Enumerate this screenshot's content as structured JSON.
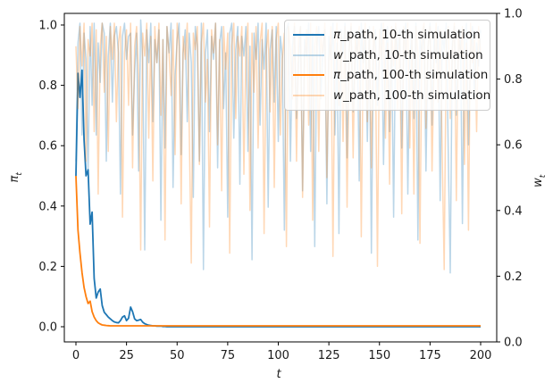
{
  "figure": {
    "background": "#ffffff",
    "xlabel": {
      "symbol": "t",
      "sub": ""
    },
    "ylabel_left": {
      "symbol": "π",
      "sub": "t"
    },
    "ylabel_right": {
      "symbol": "w",
      "sub": "t"
    },
    "x_tick_labels": [
      "0",
      "25",
      "50",
      "75",
      "100",
      "125",
      "150",
      "175",
      "200"
    ],
    "y_tick_labels_left": [
      "0.0",
      "0.2",
      "0.4",
      "0.6",
      "0.8",
      "1.0"
    ],
    "y_tick_labels_right": [
      "0.0",
      "0.2",
      "0.4",
      "0.6",
      "0.8",
      "1.0"
    ],
    "spine_color": "#000000",
    "grid": false
  },
  "legend": {
    "position": "upper right",
    "border_color": "#cccccc",
    "entries": [
      {
        "symbol": "π",
        "text": "_path, 10-th simulation",
        "color": "#1f77b4",
        "alpha": 1
      },
      {
        "symbol": "w",
        "text": "_path, 10-th simulation",
        "color": "#1f77b4",
        "alpha": 0.3
      },
      {
        "symbol": "π",
        "text": "_path, 100-th simulation",
        "color": "#ff7f0e",
        "alpha": 1
      },
      {
        "symbol": "w",
        "text": "_path, 100-th simulation",
        "color": "#ff7f0e",
        "alpha": 0.3
      }
    ]
  },
  "chart_data": {
    "type": "line",
    "title": "",
    "xlabel": "t",
    "ylabel_left": "π_t",
    "ylabel_right": "w_t",
    "x": {
      "start": 0,
      "step": 1,
      "count": 201
    },
    "xlim": [
      0,
      200
    ],
    "ylim_left": [
      0,
      1
    ],
    "ylim_right": [
      0,
      1
    ],
    "grid": false,
    "legend_position": "upper right",
    "series": [
      {
        "name": "π_path, 10-th simulation",
        "axis": "left",
        "color": "#1f77b4",
        "alpha": 1,
        "width": 1.8,
        "values": [
          0.5,
          0.84,
          0.76,
          0.85,
          0.62,
          0.5,
          0.52,
          0.34,
          0.38,
          0.16,
          0.095,
          0.115,
          0.125,
          0.07,
          0.048,
          0.04,
          0.032,
          0.026,
          0.02,
          0.016,
          0.014,
          0.013,
          0.02,
          0.032,
          0.036,
          0.02,
          0.028,
          0.065,
          0.05,
          0.026,
          0.02,
          0.022,
          0.024,
          0.015,
          0.01,
          0.007,
          0.005,
          0.004,
          0.003,
          0.003,
          0.002,
          0.002,
          0.002,
          0.001,
          0.001,
          0,
          0,
          0,
          0,
          0,
          0,
          0,
          0,
          0,
          0,
          0,
          0,
          0,
          0,
          0,
          0,
          0,
          0,
          0,
          0,
          0,
          0,
          0,
          0,
          0,
          0,
          0,
          0,
          0,
          0,
          0,
          0,
          0,
          0,
          0,
          0,
          0,
          0,
          0,
          0,
          0,
          0,
          0,
          0,
          0,
          0,
          0,
          0,
          0,
          0,
          0,
          0,
          0,
          0,
          0,
          0,
          0,
          0,
          0,
          0,
          0,
          0,
          0,
          0,
          0,
          0,
          0,
          0,
          0,
          0,
          0,
          0,
          0,
          0,
          0,
          0,
          0,
          0,
          0,
          0,
          0,
          0,
          0,
          0,
          0,
          0,
          0,
          0,
          0,
          0,
          0,
          0,
          0,
          0,
          0,
          0,
          0,
          0,
          0,
          0,
          0,
          0,
          0,
          0,
          0,
          0,
          0,
          0,
          0,
          0,
          0,
          0,
          0,
          0,
          0,
          0,
          0,
          0,
          0,
          0,
          0,
          0,
          0,
          0,
          0,
          0,
          0,
          0,
          0,
          0,
          0,
          0,
          0,
          0,
          0,
          0,
          0,
          0,
          0,
          0,
          0,
          0,
          0,
          0,
          0,
          0,
          0,
          0,
          0,
          0,
          0,
          0,
          0,
          0,
          0,
          0
        ]
      },
      {
        "name": "w_path, 10-th simulation",
        "axis": "right",
        "color": "#1f77b4",
        "alpha": 0.3,
        "width": 1.5,
        "values": [
          0.55,
          0.91,
          0.97,
          0.63,
          0.94,
          0.86,
          0.51,
          0.96,
          0.72,
          0.97,
          0.63,
          0.91,
          0.79,
          0.97,
          0.94,
          0.55,
          0.87,
          0.97,
          0.73,
          0.93,
          0.96,
          0.88,
          0.45,
          0.93,
          0.97,
          0.86,
          0.93,
          0.94,
          0.63,
          0.82,
          0.94,
          0.52,
          0.98,
          0.86,
          0.28,
          0.95,
          0.85,
          0.97,
          0.67,
          0.92,
          0.85,
          0.95,
          0.37,
          0.92,
          0.59,
          0.96,
          0.88,
          0.97,
          0.47,
          0.81,
          0.92,
          0.97,
          0.57,
          0.88,
          0.95,
          0.67,
          0.94,
          0.85,
          0.44,
          0.96,
          0.9,
          0.55,
          0.97,
          0.22,
          0.88,
          0.95,
          0.64,
          0.93,
          0.86,
          0.97,
          0.53,
          0.91,
          0.96,
          0.71,
          0.88,
          0.38,
          0.94,
          0.97,
          0.62,
          0.89,
          0.96,
          0.48,
          0.93,
          0.87,
          0.96,
          0.58,
          0.9,
          0.25,
          0.94,
          0.86,
          0.97,
          0.66,
          0.92,
          0.83,
          0.97,
          0.41,
          0.89,
          0.95,
          0.73,
          0.96,
          0.61,
          0.93,
          0.87,
          0.34,
          0.95,
          0.97,
          0.55,
          0.9,
          0.96,
          0.68,
          0.84,
          0.96,
          0.46,
          0.92,
          0.87,
          0.97,
          0.58,
          0.94,
          0.29,
          0.9,
          0.96,
          0.74,
          0.88,
          0.95,
          0.42,
          0.93,
          0.86,
          0.97,
          0.63,
          0.91,
          0.33,
          0.95,
          0.88,
          0.97,
          0.56,
          0.9,
          0.96,
          0.7,
          0.86,
          0.94,
          0.49,
          0.97,
          0.85,
          0.93,
          0.61,
          0.96,
          0.27,
          0.89,
          0.95,
          0.72,
          0.92,
          0.97,
          0.54,
          0.87,
          0.96,
          0.64,
          0.93,
          0.38,
          0.96,
          0.88,
          0.95,
          0.59,
          0.91,
          0.97,
          0.45,
          0.86,
          0.94,
          0.68,
          0.97,
          0.31,
          0.92,
          0.88,
          0.96,
          0.52,
          0.9,
          0.97,
          0.66,
          0.93,
          0.85,
          0.96,
          0.43,
          0.94,
          0.89,
          0.97,
          0.57,
          0.21,
          0.91,
          0.96,
          0.69,
          0.87,
          0.95,
          0.36,
          0.92,
          0.97,
          0.6,
          0.88,
          0.96,
          0.74,
          0.91,
          0.84,
          0.95
        ]
      },
      {
        "name": "π_path, 100-th simulation",
        "axis": "left",
        "color": "#ff7f0e",
        "alpha": 1,
        "width": 1.8,
        "values": [
          0.5,
          0.32,
          0.245,
          0.18,
          0.13,
          0.1,
          0.077,
          0.085,
          0.05,
          0.032,
          0.02,
          0.013,
          0.009,
          0.006,
          0.005,
          0.004,
          0.0035,
          0.003,
          0.003,
          0.003,
          0.003,
          0.003,
          0.003,
          0.003,
          0.003,
          0.003,
          0.003,
          0.003,
          0.003,
          0.003,
          0.003,
          0.003,
          0.003,
          0.003,
          0.003,
          0.003,
          0.003,
          0.003,
          0.003,
          0.003,
          0.003,
          0.003,
          0.003,
          0.003,
          0.003,
          0.003,
          0.003,
          0.003,
          0.003,
          0.003,
          0.003,
          0.003,
          0.003,
          0.003,
          0.003,
          0.003,
          0.003,
          0.003,
          0.003,
          0.003,
          0.003,
          0.003,
          0.003,
          0.003,
          0.003,
          0.003,
          0.003,
          0.003,
          0.003,
          0.003,
          0.003,
          0.003,
          0.003,
          0.003,
          0.003,
          0.003,
          0.003,
          0.003,
          0.003,
          0.003,
          0.003,
          0.003,
          0.003,
          0.003,
          0.003,
          0.003,
          0.003,
          0.003,
          0.003,
          0.003,
          0.003,
          0.003,
          0.003,
          0.003,
          0.003,
          0.003,
          0.003,
          0.003,
          0.003,
          0.003,
          0.003,
          0.003,
          0.003,
          0.003,
          0.003,
          0.003,
          0.003,
          0.003,
          0.003,
          0.003,
          0.003,
          0.003,
          0.003,
          0.003,
          0.003,
          0.003,
          0.003,
          0.003,
          0.003,
          0.003,
          0.003,
          0.003,
          0.003,
          0.003,
          0.003,
          0.003,
          0.003,
          0.003,
          0.003,
          0.003,
          0.003,
          0.003,
          0.003,
          0.003,
          0.003,
          0.003,
          0.003,
          0.003,
          0.003,
          0.003,
          0.003,
          0.003,
          0.003,
          0.003,
          0.003,
          0.003,
          0.003,
          0.003,
          0.003,
          0.003,
          0.003,
          0.003,
          0.003,
          0.003,
          0.003,
          0.003,
          0.003,
          0.003,
          0.003,
          0.003,
          0.003,
          0.003,
          0.003,
          0.003,
          0.003,
          0.003,
          0.003,
          0.003,
          0.003,
          0.003,
          0.003,
          0.003,
          0.003,
          0.003,
          0.003,
          0.003,
          0.003,
          0.003,
          0.003,
          0.003,
          0.003,
          0.003,
          0.003,
          0.003,
          0.003,
          0.003,
          0.003,
          0.003,
          0.003,
          0.003,
          0.003,
          0.003,
          0.003,
          0.003,
          0.003,
          0.003,
          0.003,
          0.003,
          0.003,
          0.003,
          0.003
        ]
      },
      {
        "name": "w_path, 100-th simulation",
        "axis": "right",
        "color": "#ff7f0e",
        "alpha": 0.3,
        "width": 1.5,
        "values": [
          0.9,
          0.71,
          0.96,
          0.84,
          0.97,
          0.55,
          0.92,
          0.87,
          0.97,
          0.64,
          0.95,
          0.45,
          0.9,
          0.97,
          0.76,
          0.93,
          0.58,
          0.96,
          0.86,
          0.97,
          0.67,
          0.91,
          0.96,
          0.38,
          0.88,
          0.95,
          0.72,
          0.97,
          0.53,
          0.9,
          0.96,
          0.81,
          0.28,
          0.94,
          0.87,
          0.97,
          0.62,
          0.93,
          0.49,
          0.96,
          0.85,
          0.97,
          0.69,
          0.92,
          0.31,
          0.96,
          0.88,
          0.75,
          0.95,
          0.57,
          0.97,
          0.9,
          0.42,
          0.93,
          0.86,
          0.97,
          0.65,
          0.24,
          0.94,
          0.89,
          0.96,
          0.54,
          0.91,
          0.97,
          0.73,
          0.86,
          0.35,
          0.95,
          0.88,
          0.97,
          0.6,
          0.92,
          0.46,
          0.96,
          0.83,
          0.94,
          0.27,
          0.9,
          0.97,
          0.68,
          0.93,
          0.87,
          0.96,
          0.51,
          0.89,
          0.97,
          0.4,
          0.94,
          0.76,
          0.96,
          0.59,
          0.91,
          0.97,
          0.33,
          0.88,
          0.95,
          0.7,
          0.96,
          0.47,
          0.92,
          0.97,
          0.63,
          0.86,
          0.94,
          0.29,
          0.96,
          0.89,
          0.74,
          0.97,
          0.55,
          0.92,
          0.96,
          0.44,
          0.87,
          0.95,
          0.66,
          0.97,
          0.37,
          0.9,
          0.96,
          0.58,
          0.93,
          0.88,
          0.97,
          0.5,
          0.85,
          0.96,
          0.26,
          0.91,
          0.97,
          0.72,
          0.94,
          0.61,
          0.96,
          0.41,
          0.89,
          0.97,
          0.56,
          0.93,
          0.87,
          0.96,
          0.32,
          0.9,
          0.97,
          0.67,
          0.94,
          0.53,
          0.96,
          0.88,
          0.23,
          0.95,
          0.86,
          0.97,
          0.62,
          0.91,
          0.48,
          0.96,
          0.84,
          0.97,
          0.71,
          0.93,
          0.39,
          0.96,
          0.87,
          0.97,
          0.59,
          0.92,
          0.45,
          0.96,
          0.88,
          0.3,
          0.94,
          0.97,
          0.65,
          0.9,
          0.96,
          0.52,
          0.86,
          0.97,
          0.73,
          0.95,
          0.57,
          0.22,
          0.92,
          0.96,
          0.68,
          0.89,
          0.97,
          0.43,
          0.94,
          0.87,
          0.96,
          0.54,
          0.91,
          0.34,
          0.97,
          0.85,
          0.93,
          0.64,
          0.96,
          0.88
        ]
      }
    ]
  }
}
